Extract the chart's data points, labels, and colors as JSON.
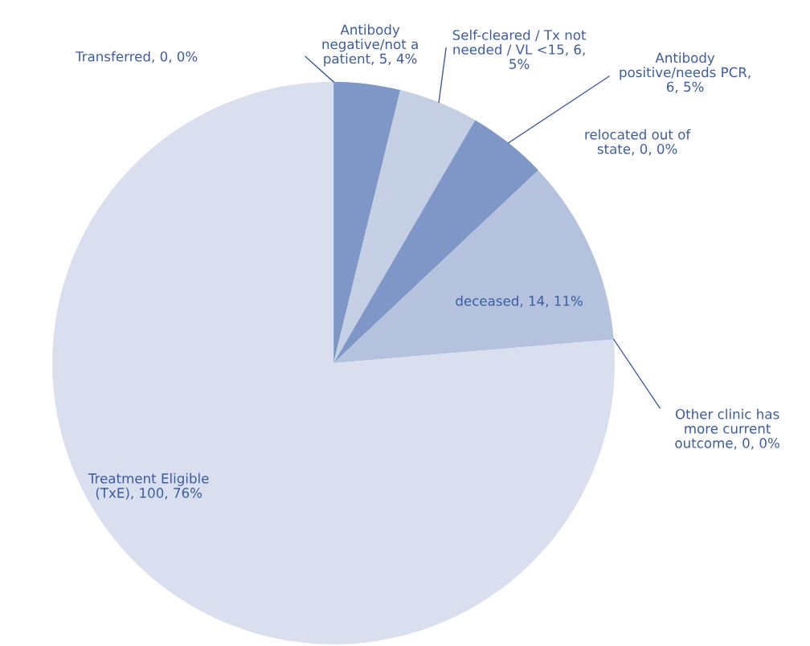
{
  "chart_data": {
    "type": "pie",
    "categories": [
      "Transferred",
      "Antibody negative/not a patient",
      "Self-cleared / Tx not needed / VL <15",
      "Antibody positive/needs PCR",
      "relocated out of state",
      "deceased",
      "Other clinic has more current outcome",
      "Treatment Eligible (TxE)"
    ],
    "values": [
      0,
      5,
      6,
      6,
      0,
      14,
      0,
      100
    ],
    "value_labels": [
      ", 0, 0%",
      ", 5, 4%",
      ", 6, 5%",
      ", 6, 5%",
      ", 0, 0%",
      ", 14, 11%",
      ", 0, 0%",
      ", 100, 76%"
    ],
    "colors": [
      "#7f97c6",
      "#7f97c6",
      "#c5cfe4",
      "#7f97c6",
      "#b4c2de",
      "#b4c2de",
      "#d9dfee",
      "#d9dfee"
    ]
  }
}
